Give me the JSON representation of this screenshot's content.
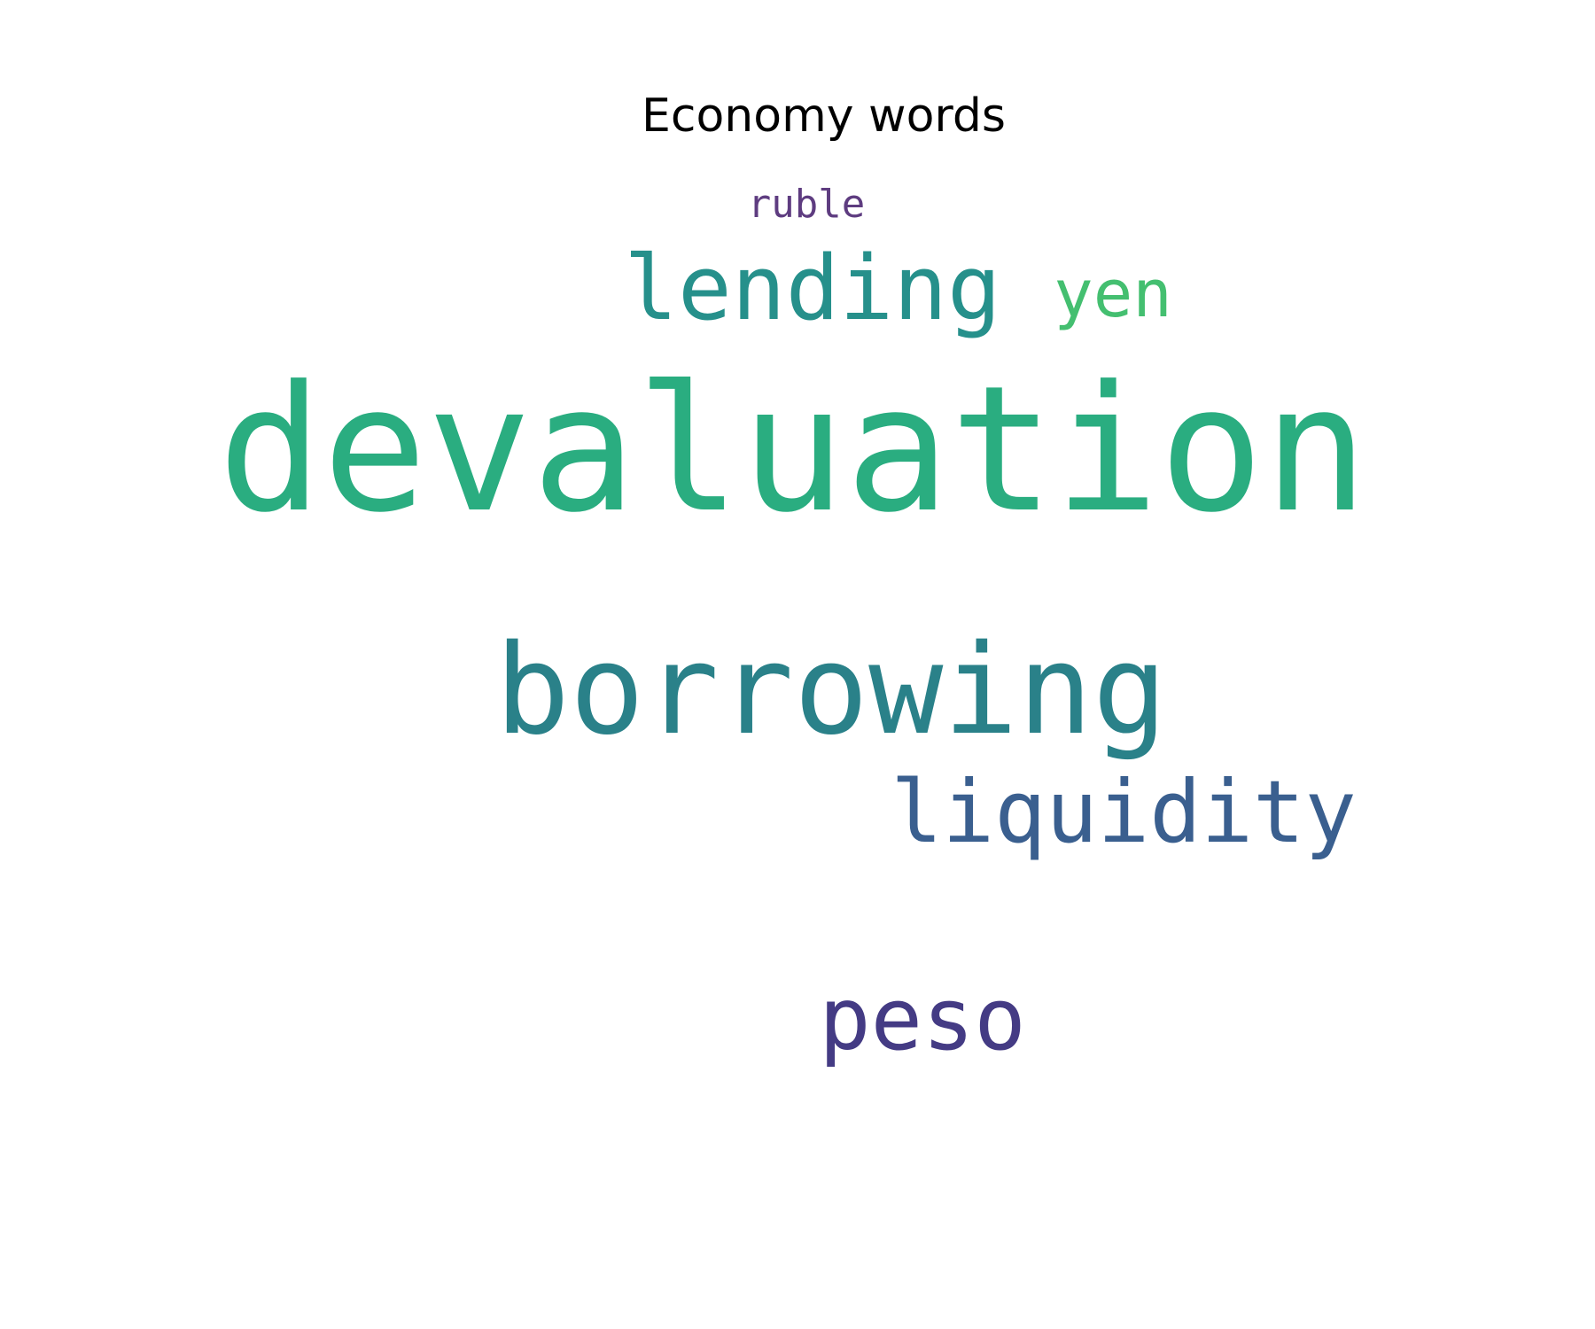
{
  "title": "Economy words",
  "chart_data": {
    "type": "wordcloud",
    "title": "Economy words",
    "words": [
      {
        "text": "devaluation",
        "weight": 1.0,
        "color": "#2aad80"
      },
      {
        "text": "borrowing",
        "weight": 0.72,
        "color": "#2a8189"
      },
      {
        "text": "lending",
        "weight": 0.52,
        "color": "#26908b"
      },
      {
        "text": "liquidity",
        "weight": 0.5,
        "color": "#3a5f8f"
      },
      {
        "text": "peso",
        "weight": 0.5,
        "color": "#443b84"
      },
      {
        "text": "yen",
        "weight": 0.38,
        "color": "#44bf70"
      },
      {
        "text": "ruble",
        "weight": 0.22,
        "color": "#5e3c80"
      }
    ]
  }
}
